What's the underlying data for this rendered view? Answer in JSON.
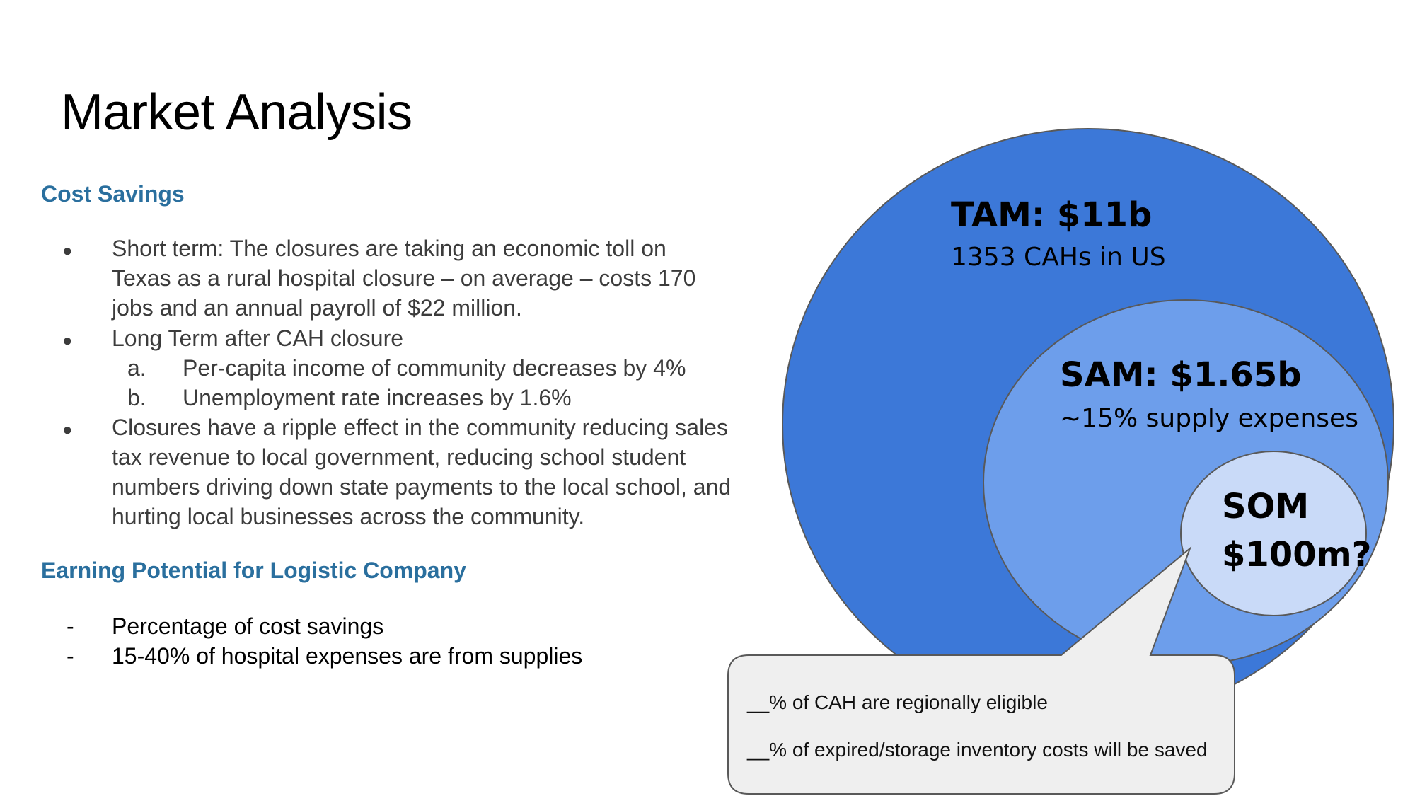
{
  "title": "Market Analysis",
  "cost_savings": {
    "heading": "Cost Savings",
    "items": [
      {
        "marker": "●",
        "lines": [
          "Short term: The closures are taking an economic toll on",
          "Texas as a rural hospital closure – on average – costs 170",
          "jobs and an annual payroll of $22 million."
        ]
      },
      {
        "marker": "●",
        "lines": [
          "Long Term after CAH closure"
        ]
      },
      {
        "marker": "a.",
        "lines": [
          "Per-capita income of community decreases by 4%"
        ]
      },
      {
        "marker": "b.",
        "lines": [
          "Unemployment rate increases by 1.6%"
        ]
      },
      {
        "marker": "●",
        "lines": [
          "Closures have a ripple effect in the community reducing sales",
          "tax revenue to local government, reducing school student",
          "numbers driving down state payments to the local school, and",
          "hurting local businesses across the community."
        ]
      }
    ]
  },
  "earning_potential": {
    "heading": "Earning Potential for Logistic Company",
    "items": [
      {
        "marker": "-",
        "text": "Percentage of cost savings"
      },
      {
        "marker": "-",
        "text": "15-40% of hospital expenses are from supplies"
      }
    ]
  },
  "diagram": {
    "tam": {
      "label": "TAM: $11b",
      "sub": "1353 CAHs in US",
      "color": "#3c78d8"
    },
    "sam": {
      "label": "SAM: $1.65b",
      "sub": "~15% supply expenses",
      "color": "#6d9eeb"
    },
    "som": {
      "label_1": "SOM",
      "label_2": "$100m?",
      "color": "#c9daf8"
    },
    "callout": {
      "line_1": "__% of CAH are regionally eligible",
      "line_2": "__% of expired/storage inventory costs will be saved",
      "color": "#efefef"
    }
  }
}
